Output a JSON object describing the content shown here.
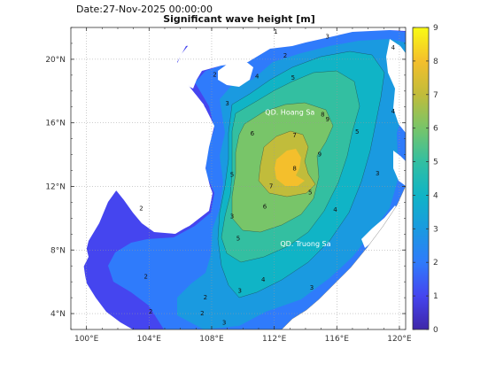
{
  "header": {
    "date_text": "Date:27-Nov-2025 00:00:00",
    "title": "Significant wave height [m]"
  },
  "chart_data": {
    "type": "heatmap",
    "title": "Significant wave height [m]",
    "date": "Date:27-Nov-2025 00:00:00",
    "x_ticks": [
      "100°E",
      "104°E",
      "108°E",
      "112°E",
      "116°E",
      "120°E"
    ],
    "x_tick_values": [
      100,
      104,
      108,
      112,
      116,
      120
    ],
    "y_ticks": [
      "4°N",
      "8°N",
      "12°N",
      "16°N",
      "20°N"
    ],
    "y_tick_values": [
      4,
      8,
      12,
      16,
      20
    ],
    "xlim": [
      99,
      120.4
    ],
    "ylim": [
      3,
      22
    ],
    "colorbar": {
      "ticks": [
        "0",
        "1",
        "2",
        "3",
        "4",
        "5",
        "6",
        "7",
        "8",
        "9"
      ],
      "min": 0,
      "max": 9,
      "colors": [
        "#3e26a8",
        "#4545ef",
        "#2f7bfb",
        "#1a9ae0",
        "#10b4c6",
        "#33bfa1",
        "#78c569",
        "#c1bc3b",
        "#f4bf2c",
        "#f9fb14"
      ]
    },
    "annotations": [
      {
        "text": "QD. Hoang Sa",
        "lon": 113.0,
        "lat": 16.5
      },
      {
        "text": "QD. Truong Sa",
        "lon": 114.0,
        "lat": 8.25
      }
    ],
    "contour_labels": [
      {
        "text": "1",
        "lon": 112.1,
        "lat": 21.6
      },
      {
        "text": "3",
        "lon": 115.4,
        "lat": 21.3
      },
      {
        "text": "2",
        "lon": 112.7,
        "lat": 20.1
      },
      {
        "text": "2",
        "lon": 108.2,
        "lat": 18.9
      },
      {
        "text": "4",
        "lon": 110.9,
        "lat": 18.8
      },
      {
        "text": "5",
        "lon": 113.2,
        "lat": 18.7
      },
      {
        "text": "4",
        "lon": 119.6,
        "lat": 20.6
      },
      {
        "text": "3",
        "lon": 109.0,
        "lat": 17.1
      },
      {
        "text": "8",
        "lon": 115.1,
        "lat": 16.4
      },
      {
        "text": "9",
        "lon": 115.4,
        "lat": 16.1
      },
      {
        "text": "4",
        "lon": 119.6,
        "lat": 16.6
      },
      {
        "text": "7",
        "lon": 113.3,
        "lat": 15.1
      },
      {
        "text": "6",
        "lon": 110.6,
        "lat": 15.2
      },
      {
        "text": "5",
        "lon": 117.3,
        "lat": 15.3
      },
      {
        "text": "3",
        "lon": 118.6,
        "lat": 12.7
      },
      {
        "text": "8",
        "lon": 113.3,
        "lat": 13.0
      },
      {
        "text": "9",
        "lon": 114.9,
        "lat": 13.9
      },
      {
        "text": "7",
        "lon": 111.8,
        "lat": 11.9
      },
      {
        "text": "6",
        "lon": 111.4,
        "lat": 10.6
      },
      {
        "text": "5",
        "lon": 114.3,
        "lat": 11.5
      },
      {
        "text": "4",
        "lon": 115.9,
        "lat": 10.4
      },
      {
        "text": "5",
        "lon": 109.3,
        "lat": 12.6
      },
      {
        "text": "3",
        "lon": 109.3,
        "lat": 10.0
      },
      {
        "text": "2",
        "lon": 103.5,
        "lat": 10.5
      },
      {
        "text": "5",
        "lon": 109.7,
        "lat": 8.6
      },
      {
        "text": "4",
        "lon": 111.3,
        "lat": 6.0
      },
      {
        "text": "3",
        "lon": 114.4,
        "lat": 5.5
      },
      {
        "text": "2",
        "lon": 103.8,
        "lat": 6.2
      },
      {
        "text": "3",
        "lon": 109.8,
        "lat": 5.3
      },
      {
        "text": "2",
        "lon": 107.6,
        "lat": 4.9
      },
      {
        "text": "2",
        "lon": 104.1,
        "lat": 4.0
      },
      {
        "text": "2",
        "lon": 107.4,
        "lat": 3.9
      },
      {
        "text": "3",
        "lon": 108.8,
        "lat": 3.3
      }
    ]
  }
}
